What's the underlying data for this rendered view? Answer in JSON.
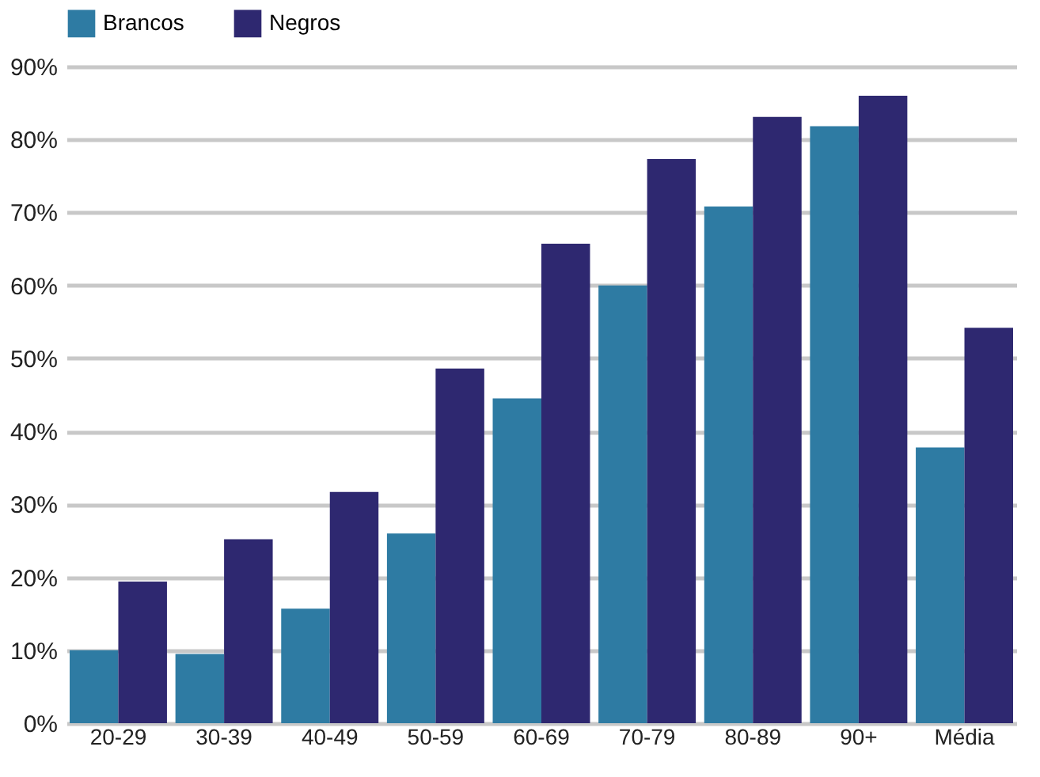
{
  "chart_data": {
    "type": "bar",
    "categories": [
      "20-29",
      "30-39",
      "40-49",
      "50-59",
      "60-69",
      "70-79",
      "80-89",
      "90+",
      "Média"
    ],
    "series": [
      {
        "name": "Brancos",
        "color": "#2e7ba3",
        "values": [
          10,
          9.5,
          15.7,
          26,
          44.5,
          60,
          70.8,
          81.8,
          37.8
        ]
      },
      {
        "name": "Negros",
        "color": "#2e2870",
        "values": [
          19.4,
          25.2,
          31.7,
          48.6,
          65.7,
          77.3,
          83.1,
          86,
          54.2
        ]
      }
    ],
    "ylim": [
      0,
      90
    ],
    "yticks": [
      {
        "value": 0,
        "label": "0%"
      },
      {
        "value": 10,
        "label": "10%"
      },
      {
        "value": 20,
        "label": "20%"
      },
      {
        "value": 30,
        "label": "30%"
      },
      {
        "value": 40,
        "label": "40%"
      },
      {
        "value": 50,
        "label": "50%"
      },
      {
        "value": 60,
        "label": "60%"
      },
      {
        "value": 70,
        "label": "70%"
      },
      {
        "value": 80,
        "label": "80%"
      },
      {
        "value": 90,
        "label": "90%"
      }
    ],
    "grid": "y",
    "legend": "top"
  }
}
